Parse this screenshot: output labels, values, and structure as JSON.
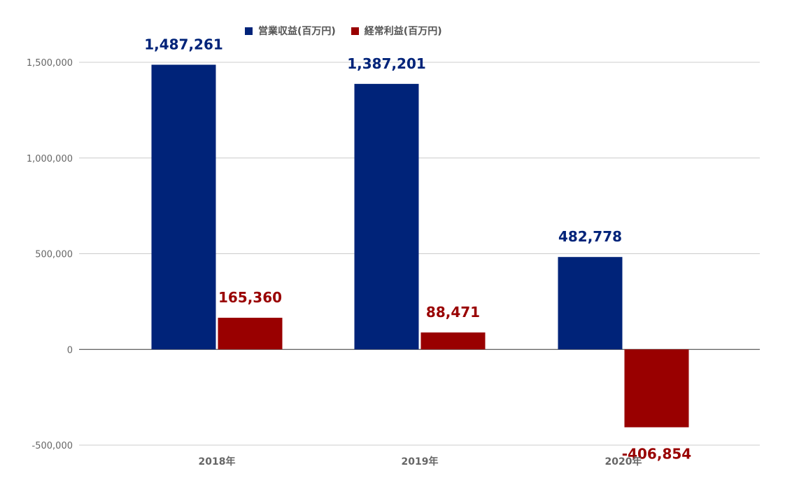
{
  "chart_data": {
    "type": "bar",
    "categories": [
      "2018年",
      "2019年",
      "2020年"
    ],
    "series": [
      {
        "name": "営業収益(百万円)",
        "color": "#002379",
        "values": [
          1487261,
          1387201,
          482778
        ]
      },
      {
        "name": "経常利益(百万円)",
        "color": "#990000",
        "values": [
          165360,
          88471,
          -406854
        ]
      }
    ],
    "data_labels": [
      [
        "1,487,261",
        "1,387,201",
        "482,778"
      ],
      [
        "165,360",
        "88,471",
        "-406,854"
      ]
    ],
    "yticks": [
      {
        "value": 1500000,
        "label": "1,500,000"
      },
      {
        "value": 1000000,
        "label": "1,000,000"
      },
      {
        "value": 500000,
        "label": "500,000"
      },
      {
        "value": 0,
        "label": "0"
      },
      {
        "value": -500000,
        "label": "-500,000"
      }
    ],
    "ylim": [
      -500000,
      1500000
    ],
    "grid": true,
    "legend_position": "top-center",
    "title": "",
    "xlabel": "",
    "ylabel": ""
  }
}
